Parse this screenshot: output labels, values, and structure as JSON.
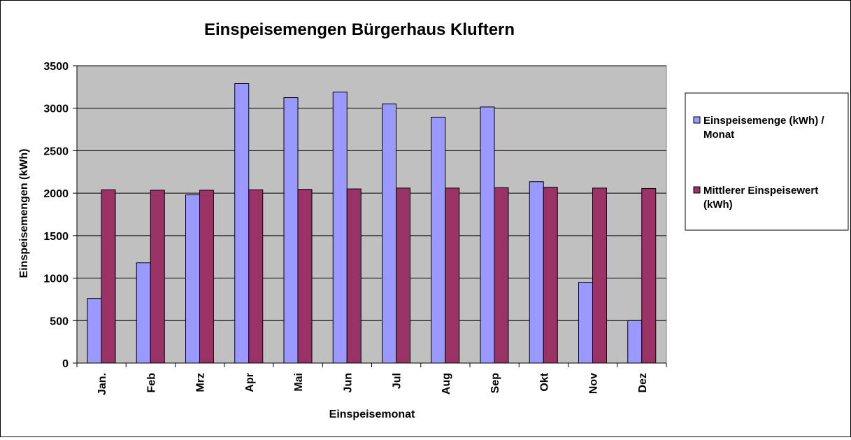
{
  "chart_data": {
    "type": "bar",
    "title": "Einspeisemengen Bürgerhaus Kluftern",
    "xlabel": "Einspeisemonat",
    "ylabel": "Einspeisemengen (kWh)",
    "ylim": [
      0,
      3500
    ],
    "yticks": [
      0,
      500,
      1000,
      1500,
      2000,
      2500,
      3000,
      3500
    ],
    "grid": true,
    "legend_position": "right",
    "categories": [
      "Jan.",
      "Feb",
      "Mrz",
      "Apr",
      "Mai",
      "Jun",
      "Jul",
      "Aug",
      "Sep",
      "Okt",
      "Nov",
      "Dez"
    ],
    "series": [
      {
        "name": "Einspeisemenge (kWh) / Monat",
        "legend_lines": [
          "Einspeisemenge (kWh) /",
          "Monat"
        ],
        "color": "#9999ff",
        "values": [
          760,
          1180,
          1980,
          3290,
          3125,
          3190,
          3050,
          2895,
          3015,
          2135,
          950,
          500
        ]
      },
      {
        "name": "Mittlerer Einspeisewert (kWh)",
        "legend_lines": [
          "Mittlerer Einspeisewert",
          "(kWh)"
        ],
        "color": "#993366",
        "values": [
          2040,
          2035,
          2035,
          2040,
          2045,
          2050,
          2060,
          2060,
          2065,
          2070,
          2060,
          2055
        ]
      }
    ],
    "plot_background": "#c0c0c0"
  }
}
